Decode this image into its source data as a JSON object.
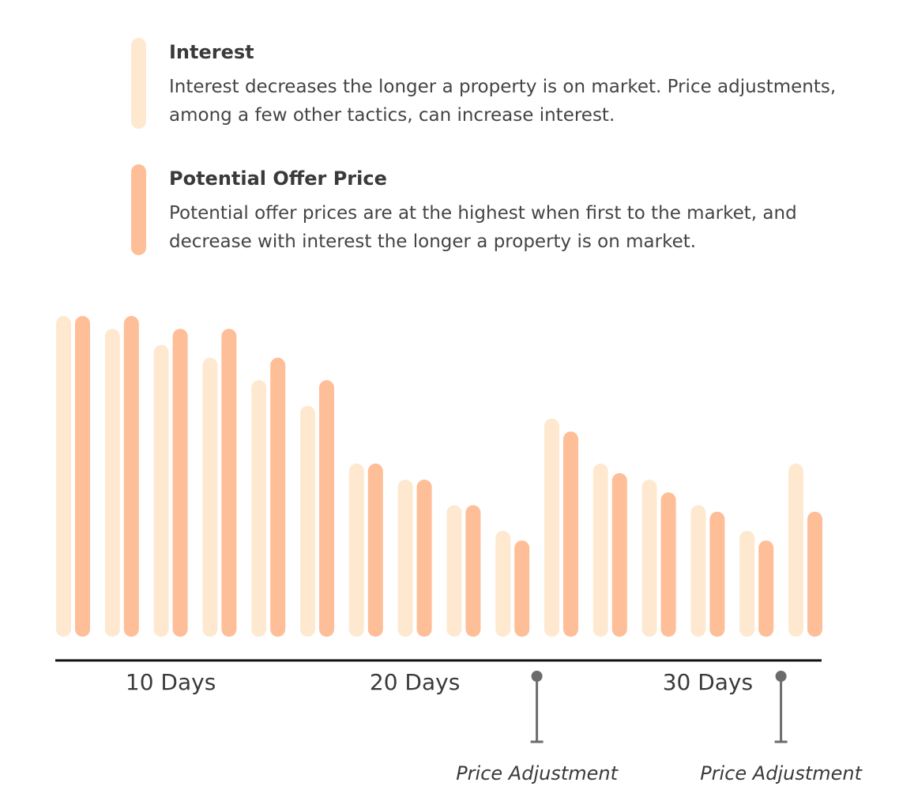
{
  "legend": {
    "interest": {
      "title": "Interest",
      "description": "Interest decreases the longer a property is on market. Price adjustments, among a few other tactics, can increase interest.",
      "color": "#FEE9D0"
    },
    "offer": {
      "title": "Potential Offer Price",
      "description": "Potential offer prices are at the highest when first to the market, and decrease with interest the longer a property is on market.",
      "color": "#FEBE98"
    }
  },
  "chart_data": {
    "type": "bar",
    "ylim": [
      0,
      100
    ],
    "grid": false,
    "series": [
      {
        "name": "Interest",
        "color": "#FEE9D0",
        "values": [
          100,
          96,
          91,
          87,
          80,
          72,
          54,
          49,
          41,
          33,
          68,
          54,
          49,
          41,
          33,
          54
        ]
      },
      {
        "name": "Potential Offer Price",
        "color": "#FEBE98",
        "values": [
          100,
          100,
          96,
          96,
          87,
          80,
          54,
          49,
          41,
          30,
          64,
          51,
          45,
          39,
          30,
          39
        ]
      }
    ],
    "x_ticks": [
      {
        "index": 2,
        "label": "10 Days"
      },
      {
        "index": 7,
        "label": "20 Days"
      },
      {
        "index": 13,
        "label": "30 Days"
      }
    ],
    "annotations": [
      {
        "after_index": 9,
        "label": "Price Adjustment"
      },
      {
        "after_index": 14,
        "label": "Price Adjustment"
      }
    ]
  }
}
